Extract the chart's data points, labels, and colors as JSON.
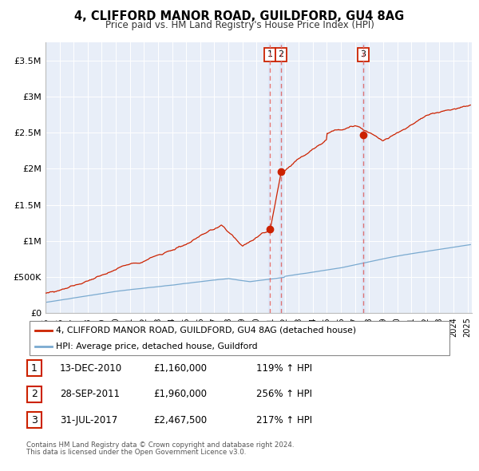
{
  "title": "4, CLIFFORD MANOR ROAD, GUILDFORD, GU4 8AG",
  "subtitle": "Price paid vs. HM Land Registry's House Price Index (HPI)",
  "legend_label_red": "4, CLIFFORD MANOR ROAD, GUILDFORD, GU4 8AG (detached house)",
  "legend_label_blue": "HPI: Average price, detached house, Guildford",
  "transactions": [
    {
      "label": "1",
      "date": "13-DEC-2010",
      "date_num": 2010.96,
      "price": 1160000,
      "price_str": "£1,160,000",
      "pct": "119%",
      "dir": "↑"
    },
    {
      "label": "2",
      "date": "28-SEP-2011",
      "date_num": 2011.74,
      "price": 1960000,
      "price_str": "£1,960,000",
      "pct": "256%",
      "dir": "↑"
    },
    {
      "label": "3",
      "date": "31-JUL-2017",
      "date_num": 2017.58,
      "price": 2467500,
      "price_str": "£2,467,500",
      "pct": "217%",
      "dir": "↑"
    }
  ],
  "footnote1": "Contains HM Land Registry data © Crown copyright and database right 2024.",
  "footnote2": "This data is licensed under the Open Government Licence v3.0.",
  "xlim": [
    1995.0,
    2025.3
  ],
  "ylim": [
    0,
    3750000
  ],
  "yticks": [
    0,
    500000,
    1000000,
    1500000,
    2000000,
    2500000,
    3000000,
    3500000
  ],
  "ytick_labels": [
    "£0",
    "£500K",
    "£1M",
    "£1.5M",
    "£2M",
    "£2.5M",
    "£3M",
    "£3.5M"
  ],
  "plot_bg": "#e8eef8",
  "red_color": "#cc2200",
  "blue_color": "#7aaad0",
  "dashed_color": "#dd6666",
  "highlight_color": "#dde8f8"
}
